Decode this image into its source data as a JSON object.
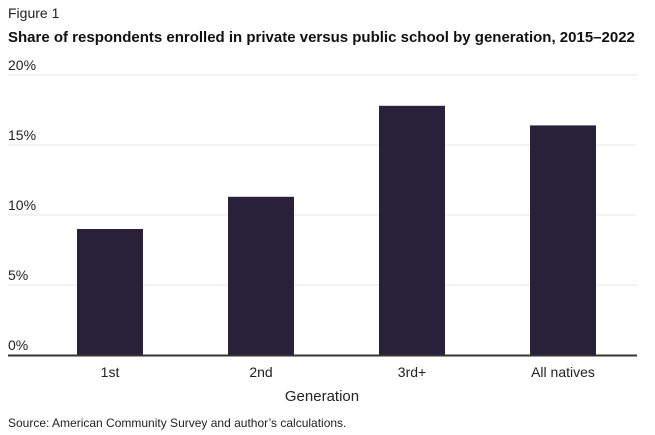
{
  "figure_label": "Figure 1",
  "source": "Source: American Community Survey and author’s calculations.",
  "colors": {
    "bar": "#27223a",
    "grid": "#e4e4e4",
    "baseline": "#333333"
  },
  "chart_data": {
    "type": "bar",
    "title": "Share of respondents enrolled in private versus public school by generation, 2015–2022",
    "xlabel": "Generation",
    "ylabel": "",
    "categories": [
      "1st",
      "2nd",
      "3rd+",
      "All natives"
    ],
    "values": [
      9.0,
      11.3,
      17.8,
      16.4
    ],
    "ylim": [
      0,
      20
    ],
    "yticks": [
      0,
      5,
      10,
      15,
      20
    ],
    "ytick_labels": [
      "0%",
      "5%",
      "10%",
      "15%",
      "20%"
    ],
    "grid": true,
    "legend": "none"
  }
}
